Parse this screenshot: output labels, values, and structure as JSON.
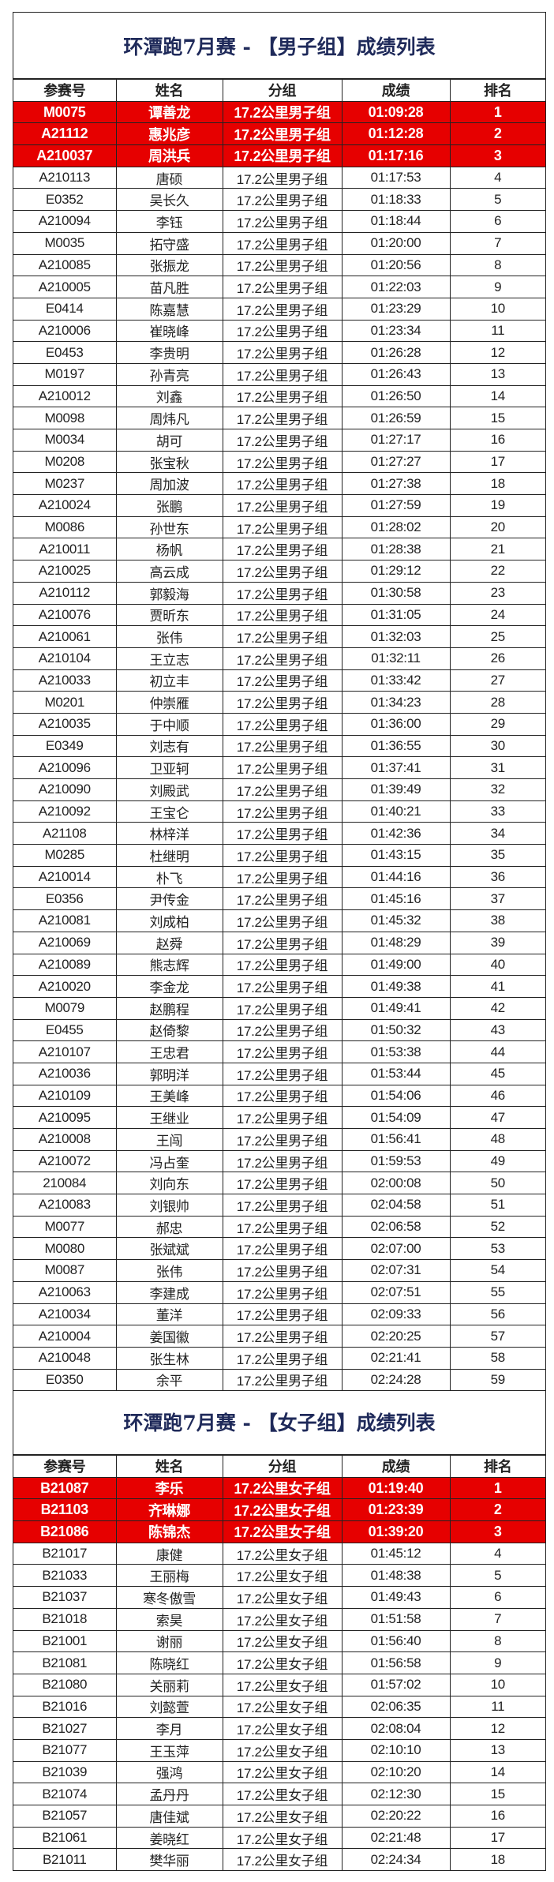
{
  "colors": {
    "highlight": "#e60000",
    "title": "#1f2a5a"
  },
  "headers": [
    "参赛号",
    "姓名",
    "分组",
    "成绩",
    "排名"
  ],
  "men": {
    "title": "环潭跑7月赛 - 【男子组】成绩列表",
    "rows": [
      [
        "M0075",
        "谭善龙",
        "17.2公里男子组",
        "01:09:28",
        "1"
      ],
      [
        "A21112",
        "惠兆彦",
        "17.2公里男子组",
        "01:12:28",
        "2"
      ],
      [
        "A210037",
        "周洪兵",
        "17.2公里男子组",
        "01:17:16",
        "3"
      ],
      [
        "A210113",
        "唐硕",
        "17.2公里男子组",
        "01:17:53",
        "4"
      ],
      [
        "E0352",
        "吴长久",
        "17.2公里男子组",
        "01:18:33",
        "5"
      ],
      [
        "A210094",
        "李钰",
        "17.2公里男子组",
        "01:18:44",
        "6"
      ],
      [
        "M0035",
        "拓守盛",
        "17.2公里男子组",
        "01:20:00",
        "7"
      ],
      [
        "A210085",
        "张振龙",
        "17.2公里男子组",
        "01:20:56",
        "8"
      ],
      [
        "A210005",
        "苗凡胜",
        "17.2公里男子组",
        "01:22:03",
        "9"
      ],
      [
        "E0414",
        "陈嘉慧",
        "17.2公里男子组",
        "01:23:29",
        "10"
      ],
      [
        "A210006",
        "崔晓峰",
        "17.2公里男子组",
        "01:23:34",
        "11"
      ],
      [
        "E0453",
        "李贵明",
        "17.2公里男子组",
        "01:26:28",
        "12"
      ],
      [
        "M0197",
        "孙青亮",
        "17.2公里男子组",
        "01:26:43",
        "13"
      ],
      [
        "A210012",
        "刘鑫",
        "17.2公里男子组",
        "01:26:50",
        "14"
      ],
      [
        "M0098",
        "周炜凡",
        "17.2公里男子组",
        "01:26:59",
        "15"
      ],
      [
        "M0034",
        "胡可",
        "17.2公里男子组",
        "01:27:17",
        "16"
      ],
      [
        "M0208",
        "张宝秋",
        "17.2公里男子组",
        "01:27:27",
        "17"
      ],
      [
        "M0237",
        "周加波",
        "17.2公里男子组",
        "01:27:38",
        "18"
      ],
      [
        "A210024",
        "张鹏",
        "17.2公里男子组",
        "01:27:59",
        "19"
      ],
      [
        "M0086",
        "孙世东",
        "17.2公里男子组",
        "01:28:02",
        "20"
      ],
      [
        "A210011",
        "杨帆",
        "17.2公里男子组",
        "01:28:38",
        "21"
      ],
      [
        "A210025",
        "高云成",
        "17.2公里男子组",
        "01:29:12",
        "22"
      ],
      [
        "A210112",
        "郭毅海",
        "17.2公里男子组",
        "01:30:58",
        "23"
      ],
      [
        "A210076",
        "贾昕东",
        "17.2公里男子组",
        "01:31:05",
        "24"
      ],
      [
        "A210061",
        "张伟",
        "17.2公里男子组",
        "01:32:03",
        "25"
      ],
      [
        "A210104",
        "王立志",
        "17.2公里男子组",
        "01:32:11",
        "26"
      ],
      [
        "A210033",
        "初立丰",
        "17.2公里男子组",
        "01:33:42",
        "27"
      ],
      [
        "M0201",
        "仲崇雁",
        "17.2公里男子组",
        "01:34:23",
        "28"
      ],
      [
        "A210035",
        "于中顺",
        "17.2公里男子组",
        "01:36:00",
        "29"
      ],
      [
        "E0349",
        "刘志有",
        "17.2公里男子组",
        "01:36:55",
        "30"
      ],
      [
        "A210096",
        "卫亚轲",
        "17.2公里男子组",
        "01:37:41",
        "31"
      ],
      [
        "A210090",
        "刘殿武",
        "17.2公里男子组",
        "01:39:49",
        "32"
      ],
      [
        "A210092",
        "王宝仑",
        "17.2公里男子组",
        "01:40:21",
        "33"
      ],
      [
        "A21108",
        "林梓洋",
        "17.2公里男子组",
        "01:42:36",
        "34"
      ],
      [
        "M0285",
        "杜继明",
        "17.2公里男子组",
        "01:43:15",
        "35"
      ],
      [
        "A210014",
        "朴飞",
        "17.2公里男子组",
        "01:44:16",
        "36"
      ],
      [
        "E0356",
        "尹传金",
        "17.2公里男子组",
        "01:45:16",
        "37"
      ],
      [
        "A210081",
        "刘成柏",
        "17.2公里男子组",
        "01:45:32",
        "38"
      ],
      [
        "A210069",
        "赵舜",
        "17.2公里男子组",
        "01:48:29",
        "39"
      ],
      [
        "A210089",
        "熊志辉",
        "17.2公里男子组",
        "01:49:00",
        "40"
      ],
      [
        "A210020",
        "李金龙",
        "17.2公里男子组",
        "01:49:38",
        "41"
      ],
      [
        "M0079",
        "赵鹏程",
        "17.2公里男子组",
        "01:49:41",
        "42"
      ],
      [
        "E0455",
        "赵倚黎",
        "17.2公里男子组",
        "01:50:32",
        "43"
      ],
      [
        "A210107",
        "王忠君",
        "17.2公里男子组",
        "01:53:38",
        "44"
      ],
      [
        "A210036",
        "郭明洋",
        "17.2公里男子组",
        "01:53:44",
        "45"
      ],
      [
        "A210109",
        "王美峰",
        "17.2公里男子组",
        "01:54:06",
        "46"
      ],
      [
        "A210095",
        "王继业",
        "17.2公里男子组",
        "01:54:09",
        "47"
      ],
      [
        "A210008",
        "王闯",
        "17.2公里男子组",
        "01:56:41",
        "48"
      ],
      [
        "A210072",
        "冯占奎",
        "17.2公里男子组",
        "01:59:53",
        "49"
      ],
      [
        "210084",
        "刘向东",
        "17.2公里男子组",
        "02:00:08",
        "50"
      ],
      [
        "A210083",
        "刘银帅",
        "17.2公里男子组",
        "02:04:58",
        "51"
      ],
      [
        "M0077",
        "郝忠",
        "17.2公里男子组",
        "02:06:58",
        "52"
      ],
      [
        "M0080",
        "张斌斌",
        "17.2公里男子组",
        "02:07:00",
        "53"
      ],
      [
        "M0087",
        "张伟",
        "17.2公里男子组",
        "02:07:31",
        "54"
      ],
      [
        "A210063",
        "李建成",
        "17.2公里男子组",
        "02:07:51",
        "55"
      ],
      [
        "A210034",
        "董洋",
        "17.2公里男子组",
        "02:09:33",
        "56"
      ],
      [
        "A210004",
        "姜国徽",
        "17.2公里男子组",
        "02:20:25",
        "57"
      ],
      [
        "A210048",
        "张生林",
        "17.2公里男子组",
        "02:21:41",
        "58"
      ],
      [
        "E0350",
        "余平",
        "17.2公里男子组",
        "02:24:28",
        "59"
      ]
    ]
  },
  "women": {
    "title": "环潭跑7月赛 - 【女子组】成绩列表",
    "rows": [
      [
        "B21087",
        "李乐",
        "17.2公里女子组",
        "01:19:40",
        "1"
      ],
      [
        "B21103",
        "齐琳娜",
        "17.2公里女子组",
        "01:23:39",
        "2"
      ],
      [
        "B21086",
        "陈锦杰",
        "17.2公里女子组",
        "01:39:20",
        "3"
      ],
      [
        "B21017",
        "康健",
        "17.2公里女子组",
        "01:45:12",
        "4"
      ],
      [
        "B21033",
        "王丽梅",
        "17.2公里女子组",
        "01:48:38",
        "5"
      ],
      [
        "B21037",
        "寒冬傲雪",
        "17.2公里女子组",
        "01:49:43",
        "6"
      ],
      [
        "B21018",
        "索昊",
        "17.2公里女子组",
        "01:51:58",
        "7"
      ],
      [
        "B21001",
        "谢丽",
        "17.2公里女子组",
        "01:56:40",
        "8"
      ],
      [
        "B21081",
        "陈晓红",
        "17.2公里女子组",
        "01:56:58",
        "9"
      ],
      [
        "B21080",
        "关丽莉",
        "17.2公里女子组",
        "01:57:02",
        "10"
      ],
      [
        "B21016",
        "刘懿萱",
        "17.2公里女子组",
        "02:06:35",
        "11"
      ],
      [
        "B21027",
        "李月",
        "17.2公里女子组",
        "02:08:04",
        "12"
      ],
      [
        "B21077",
        "王玉萍",
        "17.2公里女子组",
        "02:10:10",
        "13"
      ],
      [
        "B21039",
        "强鸿",
        "17.2公里女子组",
        "02:10:20",
        "14"
      ],
      [
        "B21074",
        "孟丹丹",
        "17.2公里女子组",
        "02:12:30",
        "15"
      ],
      [
        "B21057",
        "唐佳斌",
        "17.2公里女子组",
        "02:20:22",
        "16"
      ],
      [
        "B21061",
        "姜晓红",
        "17.2公里女子组",
        "02:21:48",
        "17"
      ],
      [
        "B21011",
        "樊华丽",
        "17.2公里女子组",
        "02:24:34",
        "18"
      ]
    ]
  }
}
